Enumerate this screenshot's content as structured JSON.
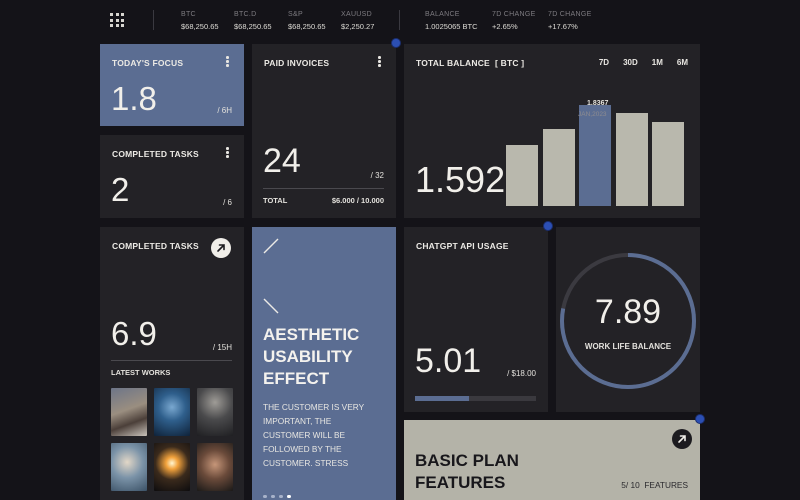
{
  "ticker": [
    {
      "label": "BTC",
      "value": "$68,250.65"
    },
    {
      "label": "BTC.D",
      "value": "$68,250.65"
    },
    {
      "label": "S&P",
      "value": "$68,250.65"
    },
    {
      "label": "XAUUSD",
      "value": "$2,250.27"
    },
    {
      "label": "BALANCE",
      "value": "1.0025065 BTC"
    },
    {
      "label": "7D CHANGE",
      "value": "+2.65%"
    },
    {
      "label": "7D CHANGE",
      "value": "+17.67%"
    }
  ],
  "focus": {
    "title": "TODAY'S FOCUS",
    "value": "1.8",
    "unit": "/ 6H"
  },
  "completed_small": {
    "title": "COMPLETED TASKS",
    "value": "2",
    "unit": "/ 6"
  },
  "invoices": {
    "title": "PAID INVOICES",
    "value": "24",
    "unit": "/ 32",
    "total_label": "TOTAL",
    "total_value": "$6.000 / 10.000"
  },
  "balance": {
    "title": "TOTAL BALANCE  [ BTC ]",
    "ranges": [
      "7D",
      "30D",
      "1M",
      "6M"
    ],
    "value": "1.592",
    "highlight_value": "1.8367",
    "highlight_date": "JAN,2023"
  },
  "chart_data": {
    "type": "bar",
    "categories": [
      "",
      "",
      "",
      "",
      ""
    ],
    "values": [
      1.12,
      1.4,
      1.8367,
      1.7,
      1.54
    ],
    "highlight_index": 2,
    "ylim": [
      0,
      1.9
    ],
    "title": "TOTAL BALANCE  [ BTC ]"
  },
  "completed_big": {
    "title": "COMPLETED TASKS",
    "value": "6.9",
    "unit": "/ 15H",
    "works_label": "LATEST WORKS"
  },
  "aesthetic": {
    "heading": [
      "AESTHETIC",
      "USABILITY",
      "EFFECT"
    ],
    "body": [
      "THE CUSTOMER IS VERY",
      "IMPORTANT, THE",
      "CUSTOMER WILL BE",
      "FOLLOWED BY THE",
      "CUSTOMER. STRESS"
    ],
    "pages": 4,
    "active_page": 3
  },
  "chatgpt": {
    "title": "CHATGPT API USAGE",
    "value": "5.01",
    "unit": "/ $18.00",
    "progress": 0.45
  },
  "worklife": {
    "value": "7.89",
    "label": "WORK LIFE BALANCE",
    "progress": 0.78
  },
  "plan": {
    "heading": [
      "BASIC PLAN",
      "FEATURES"
    ],
    "count": "5/ 10  FEATURES"
  },
  "colors": {
    "accent_blue": "#5b6d92",
    "stone": "#b4b3a8",
    "card": "#232226",
    "bg": "#141318"
  }
}
